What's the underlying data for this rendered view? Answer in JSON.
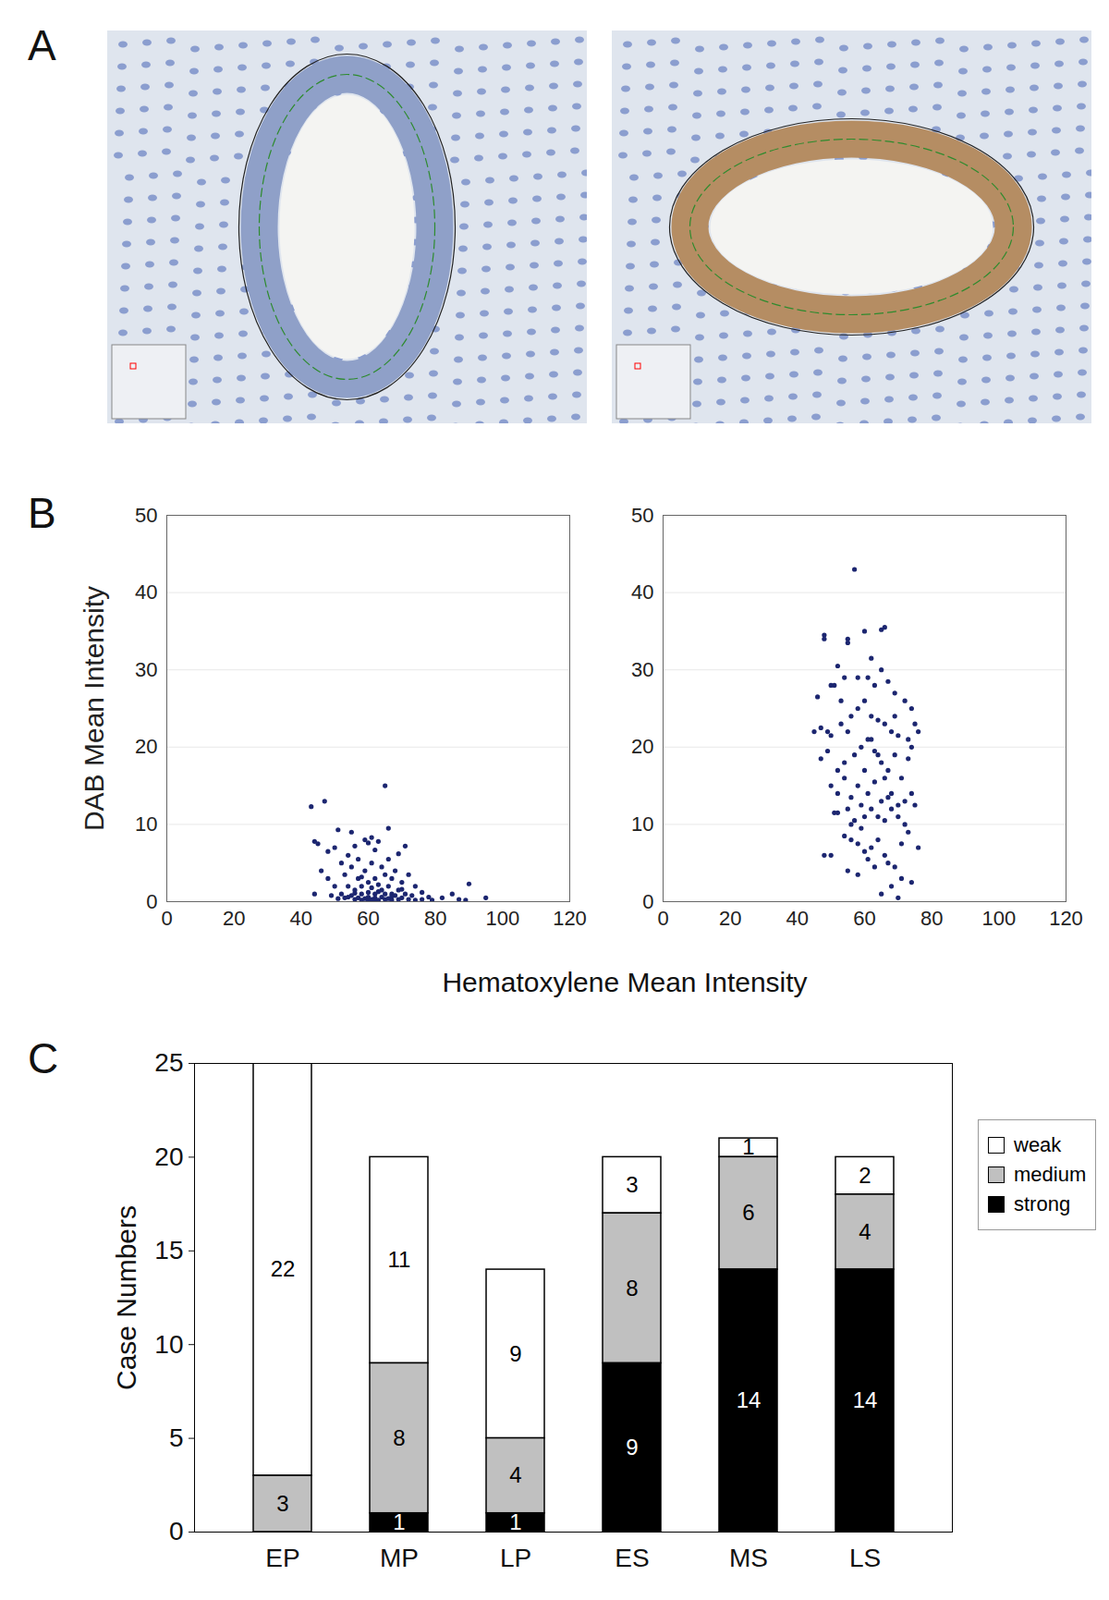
{
  "panel_labels": [
    "A",
    "B",
    "C"
  ],
  "chart_data": [
    {
      "type": "scatter",
      "x_label": "Hematoxylene Mean Intensity",
      "y_label": "DAB Mean Intensity",
      "xlim": [
        0,
        120
      ],
      "xticks": [
        0,
        20,
        40,
        60,
        80,
        100,
        120
      ],
      "ylim": [
        0,
        50
      ],
      "yticks": [
        0,
        10,
        20,
        30,
        40,
        50
      ],
      "grid": true,
      "color": "#1c2670",
      "panels": [
        {
          "x": [
            43,
            44,
            47,
            45,
            46,
            48,
            48,
            50,
            50,
            51,
            52,
            52,
            53,
            53,
            54,
            54,
            55,
            55,
            55,
            56,
            56,
            56,
            57,
            57,
            57,
            58,
            58,
            58,
            59,
            59,
            59,
            60,
            60,
            60,
            60,
            61,
            61,
            61,
            61,
            62,
            62,
            62,
            62,
            63,
            63,
            63,
            64,
            64,
            64,
            65,
            65,
            65,
            65,
            66,
            66,
            66,
            66,
            67,
            67,
            67,
            68,
            68,
            69,
            69,
            69,
            70,
            70,
            71,
            71,
            72,
            72,
            73,
            74,
            74,
            76,
            76,
            78,
            79,
            82,
            85,
            87,
            89,
            90,
            95,
            44,
            49,
            51,
            54,
            56,
            58,
            63,
            67,
            70,
            60,
            62
          ],
          "y": [
            12.3,
            7.8,
            13,
            7.5,
            4,
            6.5,
            3,
            7,
            2,
            9.3,
            5,
            1,
            3.5,
            0.5,
            6,
            2,
            9,
            0.8,
            4.5,
            7.2,
            1.5,
            0.3,
            3,
            0.5,
            5.5,
            2,
            0.2,
            1,
            8,
            4,
            0.4,
            7.6,
            2.5,
            0.6,
            1.2,
            8.3,
            5,
            0.3,
            1.8,
            6.7,
            3,
            0.5,
            1,
            7.8,
            2.2,
            0.2,
            4.5,
            1.5,
            0.6,
            15,
            3.5,
            0.3,
            1,
            9.5,
            5.5,
            2,
            0.4,
            1,
            3,
            0.2,
            4,
            0.8,
            6.2,
            1.5,
            0.3,
            2.5,
            0.5,
            7.2,
            1,
            3.5,
            0.3,
            0.8,
            2,
            0.2,
            1.2,
            0.3,
            0.6,
            0.2,
            0.5,
            1,
            0.3,
            0.2,
            2.3,
            0.5,
            1,
            0.8,
            0.4,
            0.6,
            1.1,
            3.2,
            1.3,
            0.7,
            1.6,
            0.1,
            0.1
          ]
        },
        {
          "x": [
            57,
            66,
            65,
            48,
            48,
            55,
            55,
            60,
            52,
            62,
            65,
            46,
            50,
            51,
            53,
            58,
            61,
            63,
            67,
            69,
            72,
            74,
            45,
            47,
            49,
            50,
            53,
            55,
            56,
            58,
            60,
            62,
            64,
            66,
            68,
            70,
            73,
            75,
            76,
            47,
            49,
            52,
            54,
            57,
            59,
            61,
            63,
            65,
            67,
            69,
            71,
            73,
            74,
            50,
            52,
            54,
            56,
            58,
            60,
            61,
            63,
            65,
            66,
            68,
            70,
            72,
            74,
            75,
            51,
            52,
            55,
            57,
            59,
            60,
            62,
            64,
            66,
            68,
            70,
            72,
            73,
            76,
            48,
            50,
            54,
            56,
            58,
            60,
            62,
            64,
            66,
            67,
            69,
            71,
            74,
            55,
            58,
            61,
            63,
            65,
            68,
            70,
            56,
            59,
            64,
            69,
            54,
            62,
            67,
            71
          ],
          "y": [
            43,
            35.5,
            35.2,
            34.5,
            34,
            34,
            33.5,
            35,
            30.5,
            31.5,
            30,
            26.5,
            28,
            28,
            26,
            29,
            29,
            28,
            28.5,
            27,
            26,
            25,
            22,
            22.5,
            22,
            21.5,
            23,
            22,
            24,
            25,
            26,
            24,
            23.5,
            23,
            22,
            21.5,
            21,
            23,
            22,
            18.5,
            19.5,
            17,
            18,
            19,
            20,
            21,
            19.5,
            18,
            17,
            19,
            16,
            18.5,
            20,
            15,
            14,
            16,
            13.5,
            15,
            17,
            14,
            15.5,
            13,
            16,
            14,
            12.5,
            13,
            14,
            12.5,
            11.5,
            11.5,
            12,
            10.5,
            9.5,
            11,
            12,
            11,
            10.5,
            12,
            11,
            10,
            9,
            7,
            6,
            6,
            8.5,
            8,
            7.5,
            6.5,
            7,
            8,
            6,
            5,
            4.5,
            3,
            2.5,
            4,
            3.5,
            5.5,
            4.5,
            1,
            2,
            0.5,
            10,
            12.5,
            19,
            24,
            29,
            21,
            13.5,
            7.5
          ]
        }
      ]
    },
    {
      "type": "bar",
      "stacked": true,
      "data_labels": true,
      "legend": "right",
      "y_label": "Case Numbers",
      "categories": [
        "EP",
        "MP",
        "LP",
        "ES",
        "MS",
        "LS"
      ],
      "ylim": [
        0,
        25
      ],
      "yticks": [
        0,
        5,
        10,
        15,
        20,
        25
      ],
      "series": [
        {
          "name": "weak",
          "color": "#ffffff",
          "values": [
            22,
            11,
            9,
            3,
            1,
            2
          ]
        },
        {
          "name": "medium",
          "color": "#c0c0c0",
          "values": [
            3,
            8,
            4,
            8,
            6,
            4
          ]
        },
        {
          "name": "strong",
          "color": "#000000",
          "values": [
            null,
            1,
            1,
            9,
            14,
            14
          ]
        }
      ]
    }
  ]
}
